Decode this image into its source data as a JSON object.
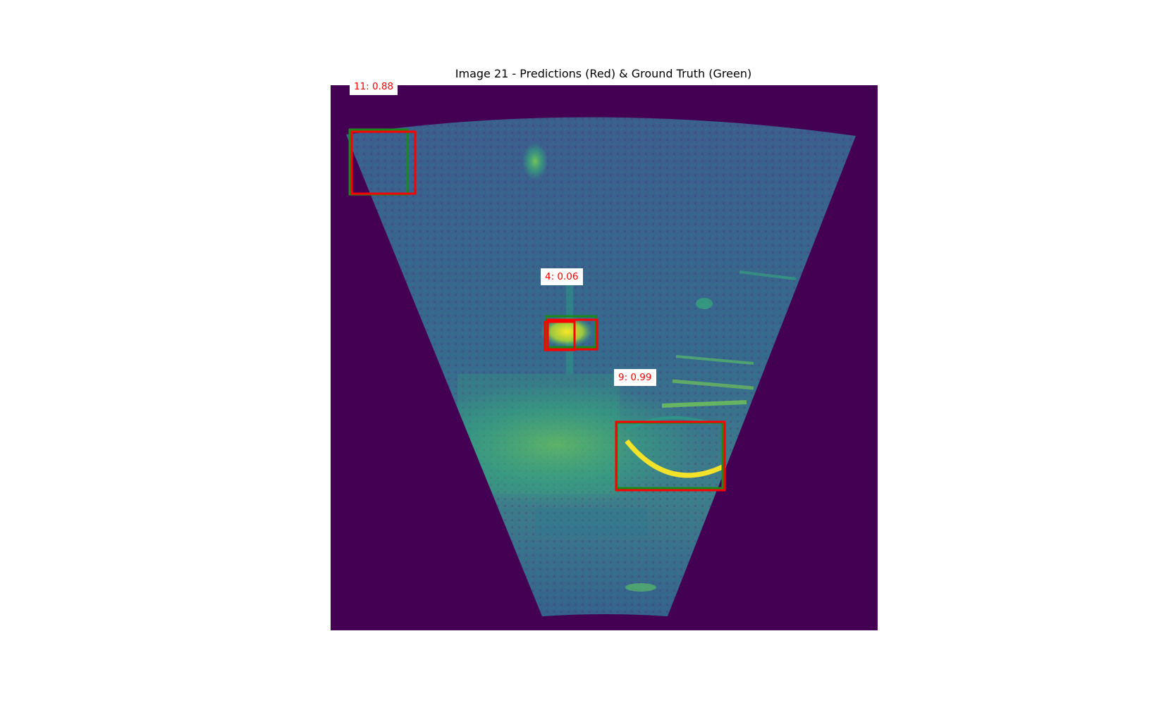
{
  "figure": {
    "title": "Image 21 - Predictions (Red) & Ground Truth (Green)"
  },
  "detections": [
    {
      "id": "det-11",
      "label": "11: 0.88"
    },
    {
      "id": "det-4",
      "label": "4: 0.06"
    },
    {
      "id": "det-9",
      "label": "9: 0.99"
    }
  ],
  "colors": {
    "background": "#440154",
    "prediction_box": "#ff0000",
    "ground_truth_box": "#1a8a1a",
    "sonar_base": "#3b5a8c",
    "highlight": "#d8e219"
  }
}
